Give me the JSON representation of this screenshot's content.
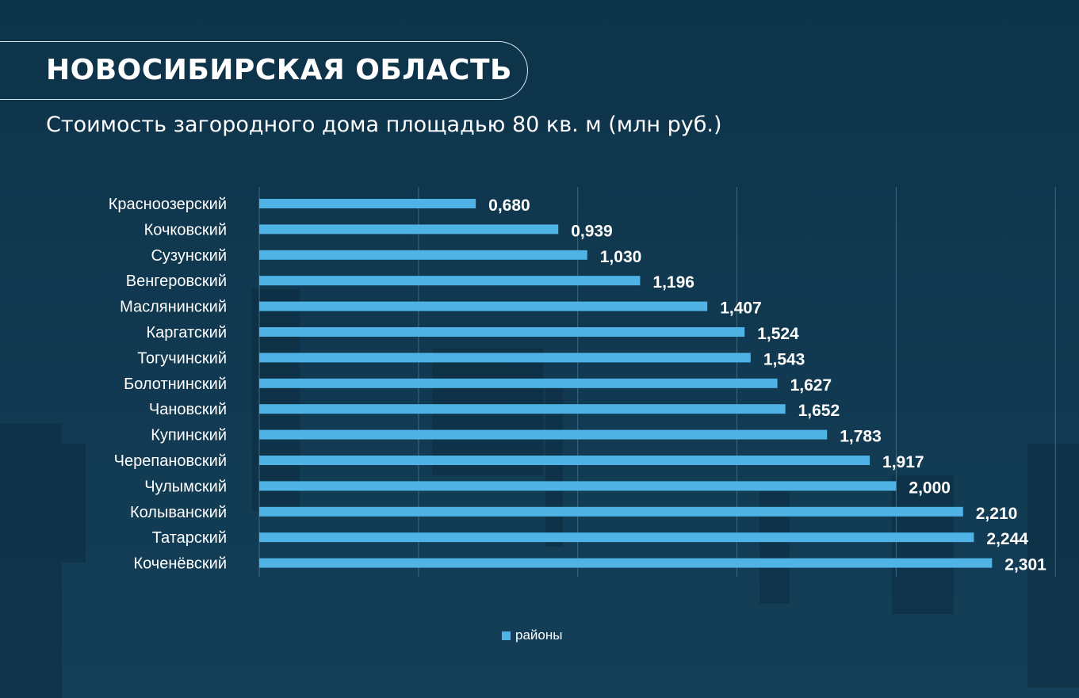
{
  "header": {
    "title": "НОВОСИБИРСКАЯ ОБЛАСТЬ",
    "subtitle": "Стоимость загородного дома площадью 80 кв. м (млн руб.)"
  },
  "colors": {
    "background": "#0f3851",
    "bar": "#4fb3e6",
    "text": "#ffffff",
    "grid": "#3c6a83"
  },
  "chart_data": {
    "type": "bar",
    "orientation": "horizontal",
    "categories": [
      "Красноозерский",
      "Кочковский",
      "Сузунский",
      "Венгеровский",
      "Маслянинский",
      "Каргатский",
      "Тогучинский",
      "Болотнинский",
      "Чановский",
      "Купинский",
      "Черепановский",
      "Чулымский",
      "Колыванский",
      "Татарский",
      "Коченёвский"
    ],
    "series": [
      {
        "name": "районы",
        "values": [
          0.68,
          0.939,
          1.03,
          1.196,
          1.407,
          1.524,
          1.543,
          1.627,
          1.652,
          1.783,
          1.917,
          2.0,
          2.21,
          2.244,
          2.301
        ]
      }
    ],
    "value_labels": [
      "0,680",
      "0,939",
      "1,030",
      "1,196",
      "1,407",
      "1,524",
      "1,543",
      "1,627",
      "1,652",
      "1,783",
      "1,917",
      "2,000",
      "2,210",
      "2,244",
      "2,301"
    ],
    "xlim": [
      0,
      2.5
    ],
    "grid": true,
    "legend": "bottom-center"
  }
}
